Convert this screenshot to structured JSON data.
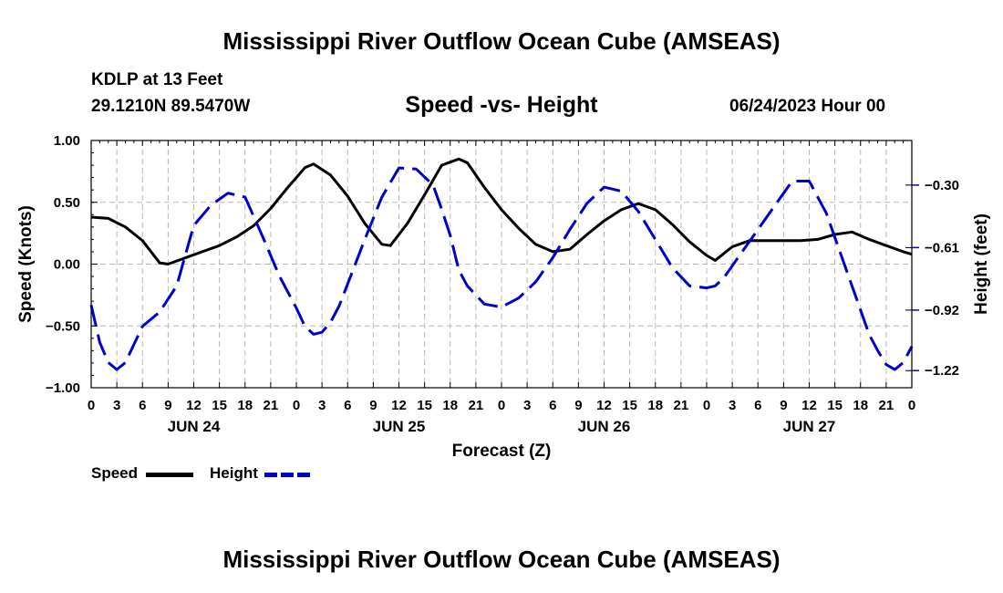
{
  "title": "Mississippi River Outflow Ocean Cube (AMSEAS)",
  "station": "KDLP at 13 Feet",
  "coords": "29.1210N  89.5470W",
  "subtitle": "Speed -vs- Height",
  "datetime": "06/24/2023 Hour 00",
  "legend": {
    "speed": "Speed",
    "height": "Height"
  },
  "colors": {
    "speed": "#000000",
    "height": "#0000cc",
    "grid": "#b8b8b8"
  },
  "chart_data": {
    "type": "line",
    "title": "Speed -vs- Height",
    "xlabel": "Forecast (Z)",
    "ylabel": "Speed (Knots)",
    "y2label": "Height (feet)",
    "xlim": [
      0,
      96
    ],
    "ylim": [
      -1.0,
      1.0
    ],
    "y2lim": [
      -1.305,
      -0.0788
    ],
    "yticks": [
      1.0,
      0.5,
      0.0,
      -0.5,
      -1.0
    ],
    "ytick_labels": [
      "1.00",
      "0.50",
      "0.00",
      "−0.50",
      "−1.00"
    ],
    "y2ticks": [
      -0.3,
      -0.61,
      -0.92,
      -1.22
    ],
    "y2tick_labels": [
      "−0.30",
      "−0.61",
      "−0.92",
      "−1.22"
    ],
    "xticks": [
      0,
      3,
      6,
      9,
      12,
      15,
      18,
      21,
      24,
      27,
      30,
      33,
      36,
      39,
      42,
      45,
      48,
      51,
      54,
      57,
      60,
      63,
      66,
      69,
      72,
      75,
      78,
      81,
      84,
      87,
      90,
      93,
      96
    ],
    "xtick_labels": [
      "0",
      "3",
      "6",
      "9",
      "12",
      "15",
      "18",
      "21",
      "0",
      "3",
      "6",
      "9",
      "12",
      "15",
      "18",
      "21",
      "0",
      "3",
      "6",
      "9",
      "12",
      "15",
      "18",
      "21",
      "0",
      "3",
      "6",
      "9",
      "12",
      "15",
      "18",
      "21",
      "0"
    ],
    "day_labels": [
      {
        "x": 12,
        "label": "JUN 24"
      },
      {
        "x": 36,
        "label": "JUN 25"
      },
      {
        "x": 60,
        "label": "JUN 26"
      },
      {
        "x": 84,
        "label": "JUN 27"
      }
    ],
    "series": [
      {
        "name": "Speed",
        "axis": "left",
        "style": "solid",
        "x": [
          0,
          2,
          4,
          6,
          8,
          9,
          11,
          13,
          15,
          17,
          19,
          21,
          23,
          25,
          26,
          28,
          30,
          32,
          34,
          35,
          37,
          39,
          41,
          43,
          44,
          46,
          48,
          50,
          52,
          54,
          56,
          58,
          60,
          62,
          64,
          66,
          68,
          70,
          72,
          73,
          75,
          77,
          79,
          81,
          83,
          85,
          87,
          89,
          91,
          93,
          95,
          96
        ],
        "y": [
          0.38,
          0.37,
          0.3,
          0.19,
          0.01,
          0.0,
          0.05,
          0.1,
          0.15,
          0.22,
          0.31,
          0.45,
          0.62,
          0.78,
          0.81,
          0.72,
          0.55,
          0.33,
          0.16,
          0.15,
          0.33,
          0.56,
          0.8,
          0.85,
          0.82,
          0.62,
          0.44,
          0.29,
          0.16,
          0.1,
          0.12,
          0.24,
          0.35,
          0.44,
          0.49,
          0.44,
          0.32,
          0.18,
          0.07,
          0.03,
          0.14,
          0.19,
          0.19,
          0.19,
          0.19,
          0.2,
          0.24,
          0.26,
          0.2,
          0.15,
          0.1,
          0.08
        ]
      },
      {
        "name": "Height",
        "axis": "right",
        "style": "dashed",
        "x": [
          0,
          1,
          2,
          3,
          4,
          5,
          6,
          8,
          10,
          11,
          12,
          14,
          16,
          18,
          20,
          22,
          24,
          25,
          26,
          27,
          28,
          29,
          30,
          32,
          34,
          36,
          38,
          40,
          41,
          42,
          43,
          44,
          46,
          48,
          50,
          52,
          53,
          54,
          55,
          56,
          58,
          60,
          62,
          64,
          65,
          66,
          68,
          70,
          72,
          73,
          74,
          75,
          76,
          78,
          80,
          82,
          84,
          86,
          88,
          90,
          91,
          92,
          93,
          94,
          95,
          96
        ],
        "y": [
          -0.895,
          -1.08,
          -1.18,
          -1.215,
          -1.18,
          -1.09,
          -1.0,
          -0.93,
          -0.8,
          -0.65,
          -0.5,
          -0.4,
          -0.34,
          -0.36,
          -0.55,
          -0.75,
          -0.91,
          -1.0,
          -1.04,
          -1.03,
          -0.98,
          -0.9,
          -0.79,
          -0.57,
          -0.36,
          -0.215,
          -0.22,
          -0.3,
          -0.42,
          -0.55,
          -0.72,
          -0.8,
          -0.89,
          -0.905,
          -0.86,
          -0.78,
          -0.72,
          -0.66,
          -0.59,
          -0.52,
          -0.39,
          -0.31,
          -0.33,
          -0.43,
          -0.5,
          -0.57,
          -0.71,
          -0.8,
          -0.81,
          -0.8,
          -0.76,
          -0.7,
          -0.64,
          -0.52,
          -0.4,
          -0.28,
          -0.28,
          -0.44,
          -0.68,
          -0.92,
          -1.04,
          -1.12,
          -1.19,
          -1.215,
          -1.18,
          -1.1
        ]
      }
    ]
  }
}
